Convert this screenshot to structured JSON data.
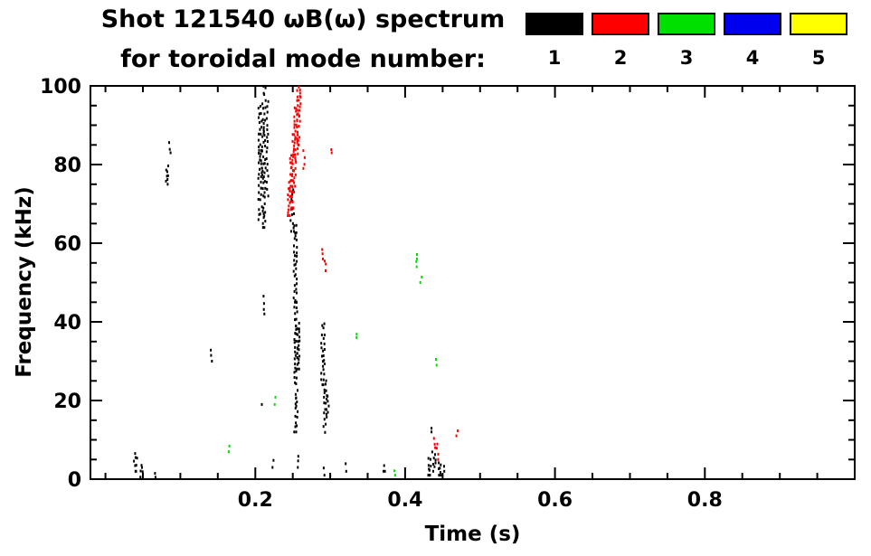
{
  "header": {
    "title_line1": "Shot 121540 ωB(ω) spectrum",
    "title_line2": "for toroidal mode number:"
  },
  "chart_data": {
    "type": "scatter",
    "title": "Shot 121540 ωB(ω) spectrum for toroidal mode number: 1 2 3 4 5",
    "xlabel": "Time (s)",
    "ylabel": "Frequency (kHz)",
    "xlim": [
      -0.02,
      1.0
    ],
    "ylim": [
      0,
      100
    ],
    "grid": false,
    "x_ticks": [
      {
        "v": 0.2,
        "label": "0.2"
      },
      {
        "v": 0.4,
        "label": "0.4"
      },
      {
        "v": 0.6,
        "label": "0.6"
      },
      {
        "v": 0.8,
        "label": "0.8"
      }
    ],
    "x_minor_ticks": [
      0.0,
      0.05,
      0.1,
      0.15,
      0.25,
      0.3,
      0.35,
      0.45,
      0.5,
      0.55,
      0.65,
      0.7,
      0.75,
      0.85,
      0.9,
      0.95
    ],
    "y_ticks": [
      {
        "v": 0,
        "label": "0"
      },
      {
        "v": 20,
        "label": "20"
      },
      {
        "v": 40,
        "label": "40"
      },
      {
        "v": 60,
        "label": "60"
      },
      {
        "v": 80,
        "label": "80"
      },
      {
        "v": 100,
        "label": "100"
      }
    ],
    "y_minor_ticks": [
      5,
      10,
      15,
      25,
      30,
      35,
      45,
      50,
      55,
      65,
      70,
      75,
      85,
      90,
      95
    ],
    "legend": {
      "position": "top-right",
      "items": [
        {
          "mode": "1",
          "color": "#000000"
        },
        {
          "mode": "2",
          "color": "#ff0000"
        },
        {
          "mode": "3",
          "color": "#00e000"
        },
        {
          "mode": "4",
          "color": "#0000ee"
        },
        {
          "mode": "5",
          "color": "#ffff00"
        }
      ]
    },
    "series": [
      {
        "name": "n1",
        "mode": "1",
        "color": "#000000",
        "marks": [
          {
            "t": 0.038,
            "f0": 2,
            "f1": 7,
            "dt": 0.006
          },
          {
            "t": 0.046,
            "f0": 0.5,
            "f1": 4,
            "dt": 0.006
          },
          {
            "t": 0.055,
            "f0": 0.5,
            "f1": 2,
            "dt": 0.005
          },
          {
            "t": 0.065,
            "f0": 0.5,
            "f1": 1.5,
            "dt": 0.003
          },
          {
            "t": 0.08,
            "f0": 75,
            "f1": 80,
            "dt": 0.004
          },
          {
            "t": 0.085,
            "f0": 83,
            "f1": 86,
            "dt": 0.003
          },
          {
            "t": 0.14,
            "f0": 30,
            "f1": 33,
            "dt": 0.003
          },
          {
            "t": 0.204,
            "f0": 66,
            "f1": 95,
            "dt": 0.004
          },
          {
            "t": 0.209,
            "f0": 64,
            "f1": 100,
            "dt": 0.006
          },
          {
            "t": 0.215,
            "f0": 72,
            "f1": 100,
            "dt": 0.003
          },
          {
            "t": 0.21,
            "f0": 42,
            "f1": 47,
            "dt": 0.003
          },
          {
            "t": 0.207,
            "f0": 19,
            "f1": 23,
            "dt": 0.002
          },
          {
            "t": 0.222,
            "f0": 3,
            "f1": 6,
            "dt": 0.003
          },
          {
            "t": 0.247,
            "f0": 63,
            "f1": 74,
            "dt": 0.004
          },
          {
            "t": 0.251,
            "f0": 45,
            "f1": 65,
            "dt": 0.004
          },
          {
            "t": 0.252,
            "f0": 12,
            "f1": 46,
            "dt": 0.005
          },
          {
            "t": 0.255,
            "f0": 28,
            "f1": 40,
            "dt": 0.004
          },
          {
            "t": 0.256,
            "f0": 3,
            "f1": 6,
            "dt": 0.003
          },
          {
            "t": 0.288,
            "f0": 24,
            "f1": 40,
            "dt": 0.006
          },
          {
            "t": 0.291,
            "f0": 11,
            "f1": 26,
            "dt": 0.005
          },
          {
            "t": 0.29,
            "f0": 1,
            "f1": 3,
            "dt": 0.003
          },
          {
            "t": 0.296,
            "f0": 17,
            "f1": 22,
            "dt": 0.003
          },
          {
            "t": 0.32,
            "f0": 2,
            "f1": 4,
            "dt": 0.003
          },
          {
            "t": 0.37,
            "f0": 2,
            "f1": 3.5,
            "dt": 0.004
          },
          {
            "t": 0.43,
            "f0": 1,
            "f1": 6,
            "dt": 0.005
          },
          {
            "t": 0.436,
            "f0": 2,
            "f1": 7,
            "dt": 0.005
          },
          {
            "t": 0.443,
            "f0": 1,
            "f1": 5,
            "dt": 0.005
          },
          {
            "t": 0.433,
            "f0": 12,
            "f1": 14,
            "dt": 0.003
          },
          {
            "t": 0.45,
            "f0": 2,
            "f1": 4,
            "dt": 0.003
          }
        ]
      },
      {
        "name": "n2",
        "mode": "2",
        "color": "#ff0000",
        "marks": [
          {
            "t": 0.243,
            "f0": 67,
            "f1": 76,
            "dt": 0.004
          },
          {
            "t": 0.246,
            "f0": 69,
            "f1": 83,
            "dt": 0.004
          },
          {
            "t": 0.249,
            "f0": 73,
            "f1": 90,
            "dt": 0.004
          },
          {
            "t": 0.252,
            "f0": 79,
            "f1": 96,
            "dt": 0.004
          },
          {
            "t": 0.255,
            "f0": 85,
            "f1": 100,
            "dt": 0.004
          },
          {
            "t": 0.258,
            "f0": 91,
            "f1": 100,
            "dt": 0.003
          },
          {
            "t": 0.264,
            "f0": 79,
            "f1": 84,
            "dt": 0.003
          },
          {
            "t": 0.288,
            "f0": 56,
            "f1": 60,
            "dt": 0.003
          },
          {
            "t": 0.292,
            "f0": 53,
            "f1": 56,
            "dt": 0.002
          },
          {
            "t": 0.3,
            "f0": 83,
            "f1": 86,
            "dt": 0.003
          },
          {
            "t": 0.438,
            "f0": 8,
            "f1": 11,
            "dt": 0.003
          },
          {
            "t": 0.442,
            "f0": 5,
            "f1": 9,
            "dt": 0.003
          },
          {
            "t": 0.468,
            "f0": 11,
            "f1": 13,
            "dt": 0.002
          }
        ]
      },
      {
        "name": "n3",
        "mode": "3",
        "color": "#00e000",
        "marks": [
          {
            "t": 0.163,
            "f0": 7,
            "f1": 9,
            "dt": 0.003
          },
          {
            "t": 0.225,
            "f0": 19,
            "f1": 21,
            "dt": 0.002
          },
          {
            "t": 0.335,
            "f0": 36,
            "f1": 38,
            "dt": 0.002
          },
          {
            "t": 0.414,
            "f0": 54,
            "f1": 58,
            "dt": 0.003
          },
          {
            "t": 0.42,
            "f0": 50,
            "f1": 53,
            "dt": 0.002
          },
          {
            "t": 0.44,
            "f0": 29,
            "f1": 31,
            "dt": 0.002
          },
          {
            "t": 0.385,
            "f0": 1,
            "f1": 3,
            "dt": 0.002
          }
        ]
      },
      {
        "name": "n4",
        "mode": "4",
        "color": "#0000ee",
        "marks": []
      },
      {
        "name": "n5",
        "mode": "5",
        "color": "#ffff00",
        "marks": []
      }
    ]
  }
}
